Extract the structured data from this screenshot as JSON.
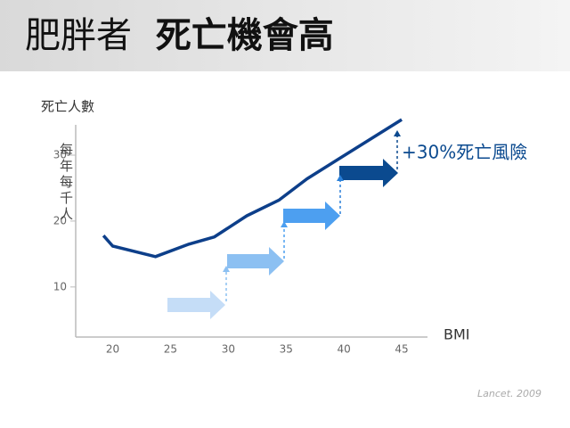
{
  "chart_data": {
    "type": "line",
    "title": "肥胖者",
    "title_emphasis": "死亡機會高",
    "y_axis_title": "死亡人數",
    "y_axis_subtitle": "每年每千人",
    "x_axis_title": "BMI",
    "annotation": "+30%死亡風險",
    "source": "Lancet. 2009",
    "x": [
      19.2,
      20,
      23.7,
      26.6,
      28.8,
      31.6,
      34.4,
      36.8,
      45
    ],
    "series": [
      {
        "color": "#0d3f8a",
        "values": [
          17.8,
          16.2,
          14.6,
          16.5,
          17.6,
          20.8,
          23.2,
          26.4,
          35.4
        ]
      }
    ],
    "xlim": [
      16.8,
      48
    ],
    "xticks": [
      20,
      25,
      30,
      35,
      40,
      45
    ],
    "ylim": [
      2.4,
      34.6
    ],
    "yticks": [
      10,
      20,
      30
    ]
  }
}
